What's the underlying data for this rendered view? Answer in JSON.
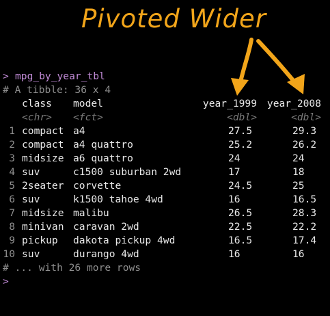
{
  "annotation": {
    "title": "Pivoted Wider",
    "color": "#f2a51a"
  },
  "console": {
    "prompt_symbol": ">",
    "command": "mpg_by_year_tbl",
    "tibble_info": "# A tibble: 36 x 4",
    "columns": [
      {
        "name": "class",
        "type": "<chr>"
      },
      {
        "name": "model",
        "type": "<fct>"
      },
      {
        "name": "year_1999",
        "type": "<dbl>"
      },
      {
        "name": "year_2008",
        "type": "<dbl>"
      }
    ],
    "rows": [
      {
        "n": "1",
        "class": "compact",
        "model": "a4",
        "year_1999": "27.5",
        "year_2008": "29.3"
      },
      {
        "n": "2",
        "class": "compact",
        "model": "a4 quattro",
        "year_1999": "25.2",
        "year_2008": "26.2"
      },
      {
        "n": "3",
        "class": "midsize",
        "model": "a6 quattro",
        "year_1999": "24",
        "year_2008": "24"
      },
      {
        "n": "4",
        "class": "suv",
        "model": "c1500 suburban 2wd",
        "year_1999": "17",
        "year_2008": "18"
      },
      {
        "n": "5",
        "class": "2seater",
        "model": "corvette",
        "year_1999": "24.5",
        "year_2008": "25"
      },
      {
        "n": "6",
        "class": "suv",
        "model": "k1500 tahoe 4wd",
        "year_1999": "16",
        "year_2008": "16.5"
      },
      {
        "n": "7",
        "class": "midsize",
        "model": "malibu",
        "year_1999": "26.5",
        "year_2008": "28.3"
      },
      {
        "n": "8",
        "class": "minivan",
        "model": "caravan 2wd",
        "year_1999": "22.5",
        "year_2008": "22.2"
      },
      {
        "n": "9",
        "class": "pickup",
        "model": "dakota pickup 4wd",
        "year_1999": "16.5",
        "year_2008": "17.4"
      },
      {
        "n": "10",
        "class": "suv",
        "model": "durango 4wd",
        "year_1999": "16",
        "year_2008": "16"
      }
    ],
    "footer": "# ... with 26 more rows",
    "next_prompt": ">"
  }
}
